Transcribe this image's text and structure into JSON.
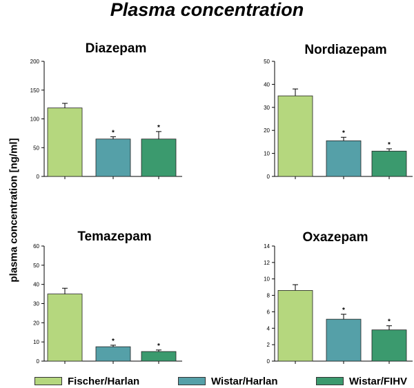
{
  "title": "Plasma concentration",
  "ylabel": "plasma concentration [ng/ml]",
  "series_labels": [
    "Fischer/Harlan",
    "Wistar/Harlan",
    "Wistar/FIHV"
  ],
  "colors": [
    "#b5d77e",
    "#55a0a8",
    "#3b9a6e"
  ],
  "significance_marker": "*",
  "chart_data": [
    {
      "type": "bar",
      "title": "Diazepam",
      "categories": [
        "Fischer/Harlan",
        "Wistar/Harlan",
        "Wistar/FIHV"
      ],
      "values": [
        119,
        65,
        65
      ],
      "errors": [
        8,
        4,
        13
      ],
      "significant": [
        false,
        true,
        true
      ],
      "ylim": [
        0,
        200
      ],
      "yticks": [
        0,
        50,
        100,
        150,
        200
      ]
    },
    {
      "type": "bar",
      "title": "Nordiazepam",
      "categories": [
        "Fischer/Harlan",
        "Wistar/Harlan",
        "Wistar/FIHV"
      ],
      "values": [
        35,
        15.5,
        11
      ],
      "errors": [
        3,
        1.5,
        1
      ],
      "significant": [
        false,
        true,
        true
      ],
      "ylim": [
        0,
        50
      ],
      "yticks": [
        0,
        10,
        20,
        30,
        40,
        50
      ]
    },
    {
      "type": "bar",
      "title": "Temazepam",
      "categories": [
        "Fischer/Harlan",
        "Wistar/Harlan",
        "Wistar/FIHV"
      ],
      "values": [
        35,
        7.5,
        5
      ],
      "errors": [
        3,
        0.8,
        0.8
      ],
      "significant": [
        false,
        true,
        true
      ],
      "ylim": [
        0,
        60
      ],
      "yticks": [
        0,
        10,
        20,
        30,
        40,
        50,
        60
      ]
    },
    {
      "type": "bar",
      "title": "Oxazepam",
      "categories": [
        "Fischer/Harlan",
        "Wistar/Harlan",
        "Wistar/FIHV"
      ],
      "values": [
        8.6,
        5.1,
        3.8
      ],
      "errors": [
        0.7,
        0.6,
        0.5
      ],
      "significant": [
        false,
        true,
        true
      ],
      "ylim": [
        0,
        14
      ],
      "yticks": [
        0,
        2,
        4,
        6,
        8,
        10,
        12,
        14
      ]
    }
  ]
}
